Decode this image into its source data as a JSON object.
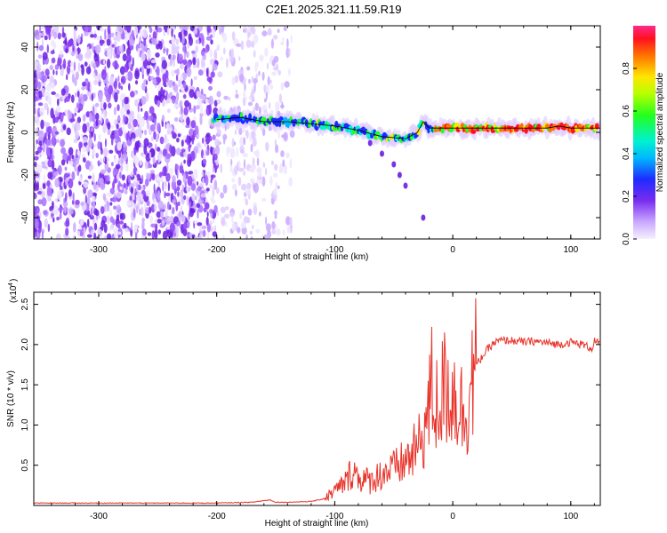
{
  "title": "C2E1.2025.321.11.59.R19",
  "chart_data": [
    {
      "type": "heatmap",
      "name": "spectrogram",
      "xlabel": "Height of straight line (km)",
      "ylabel": "Frequency (Hz)",
      "xlim": [
        -355,
        125
      ],
      "ylim": [
        -50,
        50
      ],
      "x_ticks": [
        -300,
        -200,
        -100,
        0,
        100
      ],
      "y_ticks": [
        -40,
        -20,
        0,
        20,
        40
      ],
      "x_tick_labels": [
        "-300",
        "-200",
        "-100",
        "0",
        "100"
      ],
      "y_tick_labels": [
        "-40",
        "-20",
        "0",
        "20",
        "40"
      ],
      "colorbar": {
        "label": "Normalized spectral amplitude",
        "range": [
          0,
          1
        ],
        "ticks": [
          0.0,
          0.2,
          0.4,
          0.6,
          0.8
        ],
        "tick_labels": [
          "0.0",
          "0.2",
          "0.4",
          "0.6",
          "0.8"
        ]
      },
      "ridge_line": {
        "x": [
          -200,
          -180,
          -160,
          -140,
          -120,
          -100,
          -80,
          -60,
          -40,
          -30,
          -25,
          -20,
          -10,
          0,
          20,
          40,
          60,
          80,
          90,
          100,
          125
        ],
        "y": [
          6,
          7,
          5,
          5,
          4,
          3,
          1,
          -2,
          -3,
          0,
          5,
          2,
          2,
          2,
          2,
          2,
          2,
          2,
          3,
          2,
          2
        ]
      },
      "secondary_trace": {
        "x": [
          -70,
          -60,
          -50,
          -45,
          -40,
          -25
        ],
        "y": [
          -5,
          -10,
          -15,
          -20,
          -25,
          -40
        ]
      }
    },
    {
      "type": "line",
      "name": "snr",
      "xlabel": "Height of straight line (km)",
      "ylabel": "SNR (10 * v/v)",
      "y_scale_note": "(x10",
      "y_scale_exp": "4",
      "y_scale_close": ")",
      "xlim": [
        -355,
        125
      ],
      "ylim": [
        0,
        2.65
      ],
      "x_ticks": [
        -300,
        -200,
        -100,
        0,
        100
      ],
      "y_ticks": [
        0.5,
        1.0,
        1.5,
        2.0,
        2.5
      ],
      "x_tick_labels": [
        "-300",
        "-200",
        "-100",
        "0",
        "100"
      ],
      "y_tick_labels": [
        "0.5",
        "1.0",
        "1.5",
        "2.0",
        "2.5"
      ],
      "series": [
        {
          "name": "SNR",
          "color": "#e8332a",
          "x": [
            -355,
            -300,
            -250,
            -200,
            -170,
            -155,
            -150,
            -140,
            -120,
            -110,
            -100,
            -90,
            -85,
            -80,
            -70,
            -60,
            -50,
            -40,
            -30,
            -25,
            -20,
            -18,
            -15,
            -10,
            -5,
            0,
            5,
            10,
            15,
            20,
            25,
            30,
            35,
            40,
            50,
            60,
            70,
            80,
            90,
            100,
            110,
            118,
            120,
            125
          ],
          "y": [
            0.03,
            0.03,
            0.03,
            0.03,
            0.04,
            0.07,
            0.04,
            0.04,
            0.05,
            0.08,
            0.18,
            0.3,
            0.45,
            0.35,
            0.3,
            0.4,
            0.45,
            0.55,
            0.7,
            0.9,
            1.2,
            1.5,
            1.2,
            1.35,
            1.5,
            1.4,
            1.3,
            1.1,
            1.5,
            1.75,
            1.85,
            1.95,
            2.02,
            2.05,
            2.05,
            2.03,
            2.04,
            2.02,
            2.0,
            2.03,
            2.0,
            1.95,
            2.05,
            2.0
          ]
        }
      ]
    }
  ]
}
